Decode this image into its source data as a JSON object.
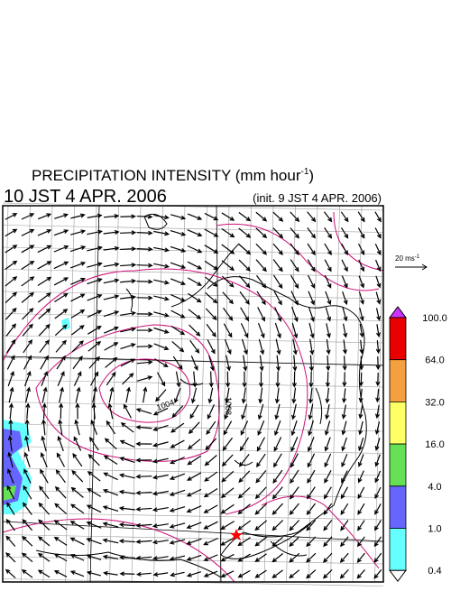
{
  "header": {
    "title": "PRECIPITATION INTENSITY (mm hour",
    "title_sup": "-1",
    "title_end": ")",
    "valid_time": "10 JST 4 APR. 2006",
    "init_time": "(init. 9 JST 4 APR. 2006)"
  },
  "vector_legend": {
    "label": "20 ms",
    "label_sup": "-1"
  },
  "contour_labels": [
    "1004",
    "1008"
  ],
  "colorbar": {
    "over_color": "#cc33ff",
    "under_color": "#ffffff",
    "labels": [
      "100.0",
      "64.0",
      "32.0",
      "16.0",
      "4.0",
      "1.0",
      "0.4"
    ],
    "colors": [
      "#e80000",
      "#f5a040",
      "#ffff66",
      "#66e055",
      "#6666ff",
      "#66ffff"
    ]
  }
}
